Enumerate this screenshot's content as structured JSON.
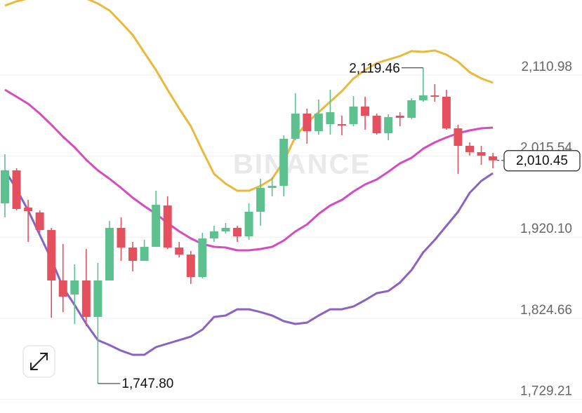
{
  "chart_data": {
    "type": "candlestick",
    "watermark": "BINANCE",
    "open": [
      1959.9,
      1998.7,
      1954.9,
      1949.2,
      1928.5,
      1869.1,
      1852.6,
      1869.1,
      1826.2,
      1869.1,
      1931.0,
      1907.9,
      1892.2,
      1908.7,
      1957.4,
      1907.9,
      1899.6,
      1873.2,
      1918.6,
      1926.9,
      1931.0,
      1921.1,
      1950.0,
      1978.1,
      1980.5,
      2035.9,
      2065.6,
      2044.9,
      2053.2,
      2053.2,
      2053.2,
      2073.8,
      2063.1,
      2042.5,
      2063.1,
      2060.6,
      2081.3,
      2087.0,
      2085.4,
      2048.2,
      2027.6,
      2020.2,
      2015.2
    ],
    "high": [
      2017.7,
      2001.2,
      1964.0,
      1951.6,
      1931.0,
      1912.0,
      1888.1,
      1906.2,
      1889.7,
      1939.3,
      1943.4,
      1914.5,
      1917.0,
      1974.8,
      1968.2,
      1914.5,
      1903.8,
      1925.2,
      1933.5,
      1936.8,
      1933.5,
      1959.9,
      1988.8,
      1990.4,
      2040.0,
      2089.5,
      2071.4,
      2082.1,
      2093.6,
      2063.1,
      2086.2,
      2085.4,
      2065.6,
      2064.8,
      2067.2,
      2083.7,
      2119.46,
      2100.3,
      2093.6,
      2052.4,
      2031.7,
      2027.6,
      2019.3
    ],
    "low": [
      1943.4,
      1951.6,
      1914.5,
      1925.2,
      1825.3,
      1831.9,
      1817.9,
      1815.4,
      1747.8,
      1869.1,
      1892.2,
      1879.8,
      1892.2,
      1908.7,
      1906.2,
      1896.3,
      1865.0,
      1871.6,
      1914.5,
      1924.4,
      1914.5,
      1917.0,
      1933.5,
      1968.2,
      1968.2,
      2034.2,
      2030.1,
      2040.8,
      2040.8,
      2040.0,
      2050.7,
      2046.6,
      2040.8,
      2034.2,
      2050.7,
      2059.0,
      2079.6,
      2079.6,
      2046.6,
      1994.6,
      2016.0,
      2005.3,
      2001.2
    ],
    "close": [
      1998.7,
      1953.3,
      1950.8,
      1928.5,
      1869.1,
      1850.1,
      1869.1,
      1826.2,
      1869.1,
      1931.0,
      1907.9,
      1892.2,
      1908.7,
      1958.2,
      1907.9,
      1899.6,
      1873.2,
      1918.6,
      1926.9,
      1931.0,
      1921.1,
      1950.0,
      1978.1,
      1980.5,
      2035.9,
      2065.6,
      2044.9,
      2065.6,
      2067.2,
      2051.5,
      2073.8,
      2063.1,
      2042.5,
      2061.4,
      2060.6,
      2081.3,
      2087.0,
      2085.4,
      2048.2,
      2027.6,
      2020.2,
      2016.0,
      2010.45
    ],
    "up_color": "#5cc08f",
    "down_color": "#e5505f",
    "overlays": [
      {
        "color": "#e8b93a",
        "values": [
          2192.7,
          2197.7,
          2201.0,
          2202.6,
          2203.4,
          2203.4,
          2202.6,
          2201.0,
          2195.2,
          2186.9,
          2172.9,
          2158.0,
          2137.4,
          2116.8,
          2093.6,
          2071.4,
          2050.7,
          2021.8,
          1994.6,
          1983.0,
          1974.8,
          1974.8,
          1980.5,
          1988.8,
          2009.4,
          2038.3,
          2054.8,
          2067.2,
          2079.6,
          2092.0,
          2106.9,
          2116.8,
          2125.0,
          2129.1,
          2133.3,
          2139.1,
          2138.2,
          2139.9,
          2134.9,
          2126.7,
          2114.3,
          2106.9,
          2101.9
        ]
      },
      {
        "color": "#d64bbf",
        "values": [
          2093.6,
          2085.4,
          2077.1,
          2065.6,
          2052.4,
          2038.3,
          2025.9,
          2011.1,
          1998.7,
          1988.8,
          1978.1,
          1966.5,
          1956.6,
          1947.5,
          1936.8,
          1926.9,
          1918.6,
          1912.0,
          1908.7,
          1907.9,
          1904.6,
          1904.6,
          1906.2,
          1908.7,
          1916.1,
          1926.9,
          1935.1,
          1947.5,
          1957.4,
          1964.0,
          1973.9,
          1982.2,
          1988.0,
          1997.1,
          2007.0,
          2013.6,
          2024.3,
          2031.7,
          2037.5,
          2042.5,
          2045.8,
          2048.2,
          2049.1
        ]
      },
      {
        "color": "#8a62c3",
        "values": [
          1998.7,
          1976.4,
          1951.6,
          1922.7,
          1893.9,
          1860.8,
          1840.2,
          1817.9,
          1798.9,
          1793.1,
          1786.5,
          1781.6,
          1781.6,
          1790.7,
          1794.8,
          1798.9,
          1803.0,
          1811.3,
          1826.2,
          1827.8,
          1835.2,
          1835.2,
          1831.9,
          1827.8,
          1821.2,
          1817.9,
          1819.5,
          1827.8,
          1835.2,
          1835.2,
          1838.5,
          1846.0,
          1854.2,
          1856.7,
          1866.6,
          1881.5,
          1902.1,
          1917.0,
          1933.5,
          1950.0,
          1972.3,
          1986.3,
          1995.4
        ]
      }
    ],
    "max_label": "2,119.46",
    "min_label": "1,747.80",
    "last_label": "2,010.45",
    "ylim": [
      1713.1,
      2199.3
    ],
    "yticks": [
      {
        "value": 2110.98,
        "label": "2,110.98"
      },
      {
        "value": 2015.54,
        "label": "2,015.54"
      },
      {
        "value": 1920.1,
        "label": "1,920.10"
      },
      {
        "value": 1824.66,
        "label": "1,824.66"
      },
      {
        "value": 1729.21,
        "label": "1,729.21"
      }
    ],
    "grid": true
  }
}
